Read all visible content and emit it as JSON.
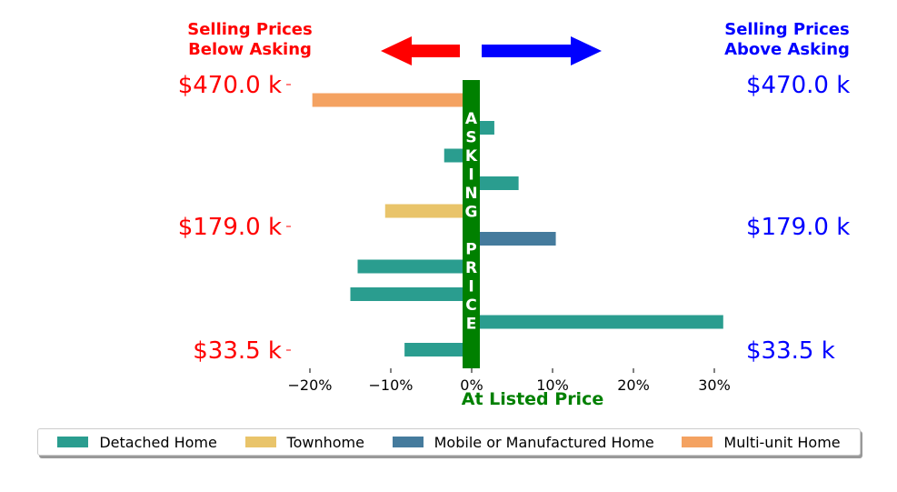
{
  "chart_data": {
    "type": "bar",
    "orientation": "horizontal",
    "title_left": "Selling Prices\nBelow Asking",
    "title_right": "Selling Prices\nAbove Asking",
    "center_label": "ASKING PRICE",
    "xlabel": "At Listed Price",
    "xlim": [
      -0.2,
      0.3
    ],
    "x_ticks": [
      {
        "value": -0.2,
        "label": "−20%"
      },
      {
        "value": -0.1,
        "label": "−10%"
      },
      {
        "value": 0.0,
        "label": "0%"
      },
      {
        "value": 0.1,
        "label": "10%"
      },
      {
        "value": 0.2,
        "label": "20%"
      },
      {
        "value": 0.3,
        "label": "30%"
      }
    ],
    "y_ticks_left": [
      "$470.0 k",
      "$179.0 k",
      "$33.5 k"
    ],
    "y_ticks_right": [
      "$470.0 k",
      "$179.0 k",
      "$33.5 k"
    ],
    "bars": [
      {
        "category": "Multi-unit Home",
        "value": -0.197
      },
      {
        "category": "Detached Home",
        "value": 0.028
      },
      {
        "category": "Detached Home",
        "value": -0.034
      },
      {
        "category": "Detached Home",
        "value": 0.058
      },
      {
        "category": "Townhome",
        "value": -0.107
      },
      {
        "category": "Mobile or Manufactured Home",
        "value": 0.104
      },
      {
        "category": "Detached Home",
        "value": -0.141
      },
      {
        "category": "Detached Home",
        "value": -0.15
      },
      {
        "category": "Detached Home",
        "value": 0.311
      },
      {
        "category": "Detached Home",
        "value": -0.083
      }
    ],
    "legend": [
      {
        "name": "Detached Home",
        "color": "#2a9d8f"
      },
      {
        "name": "Townhome",
        "color": "#e9c46a"
      },
      {
        "name": "Mobile or Manufactured Home",
        "color": "#457b9d"
      },
      {
        "name": "Multi-unit Home",
        "color": "#f4a261"
      }
    ],
    "colors": {
      "below": "#ff0000",
      "above": "#0000ff",
      "asking_bar": "#008000"
    },
    "legend_placement": "bottom",
    "grid": false
  }
}
